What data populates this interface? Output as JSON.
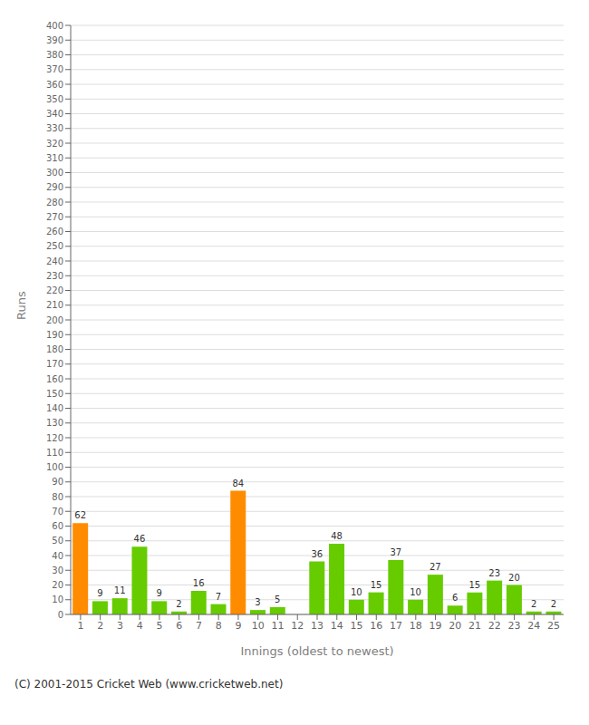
{
  "chart_data": {
    "type": "bar",
    "categories": [
      "1",
      "2",
      "3",
      "4",
      "5",
      "6",
      "7",
      "8",
      "9",
      "10",
      "11",
      "12",
      "13",
      "14",
      "15",
      "16",
      "17",
      "18",
      "19",
      "20",
      "21",
      "22",
      "23",
      "24",
      "25"
    ],
    "values": [
      62,
      9,
      11,
      46,
      9,
      2,
      16,
      7,
      84,
      3,
      5,
      0,
      36,
      48,
      10,
      15,
      37,
      10,
      27,
      6,
      15,
      23,
      20,
      2,
      2
    ],
    "colors": [
      "#FF8C00",
      "#66CC00",
      "#66CC00",
      "#66CC00",
      "#66CC00",
      "#66CC00",
      "#66CC00",
      "#66CC00",
      "#FF8C00",
      "#66CC00",
      "#66CC00",
      "#66CC00",
      "#66CC00",
      "#66CC00",
      "#66CC00",
      "#66CC00",
      "#66CC00",
      "#66CC00",
      "#66CC00",
      "#66CC00",
      "#66CC00",
      "#66CC00",
      "#66CC00",
      "#66CC00",
      "#66CC00"
    ],
    "xlabel": "Innings (oldest to newest)",
    "ylabel": "Runs",
    "ylim": [
      0,
      400
    ],
    "yticks": [
      0,
      10,
      20,
      30,
      40,
      50,
      60,
      70,
      80,
      90,
      100,
      110,
      120,
      130,
      140,
      150,
      160,
      170,
      180,
      190,
      200,
      210,
      220,
      230,
      240,
      250,
      260,
      270,
      280,
      290,
      300,
      310,
      320,
      330,
      340,
      350,
      360,
      370,
      380,
      390,
      400
    ],
    "grid": true,
    "data_labels": true,
    "annotations": [
      "(C) 2001-2015 Cricket Web (www.cricketweb.net)"
    ]
  }
}
